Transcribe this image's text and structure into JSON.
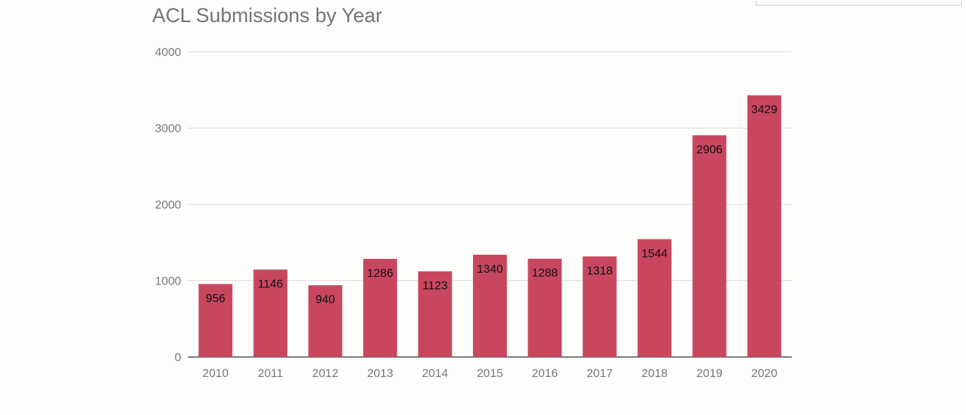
{
  "chart_data": {
    "type": "bar",
    "title": "ACL Submissions by Year",
    "xlabel": "",
    "ylabel": "",
    "categories": [
      "2010",
      "2011",
      "2012",
      "2013",
      "2014",
      "2015",
      "2016",
      "2017",
      "2018",
      "2019",
      "2020"
    ],
    "values": [
      956,
      1146,
      940,
      1286,
      1123,
      1340,
      1288,
      1318,
      1544,
      2906,
      3429
    ],
    "ylim": [
      0,
      4000
    ],
    "yticks": [
      0,
      1000,
      2000,
      3000,
      4000
    ],
    "grid": true,
    "legend": "none",
    "bar_color": "#c8475f",
    "data_labels": "inside-top"
  }
}
